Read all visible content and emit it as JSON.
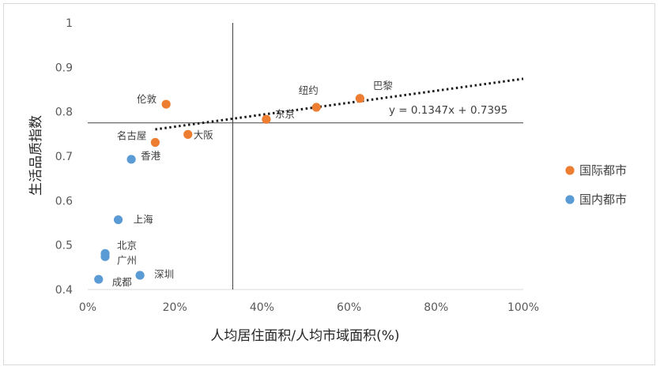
{
  "chart_data": {
    "type": "scatter",
    "xlabel": "人均居住面积/人均市域面积(%)",
    "ylabel": "生活品质指数",
    "xlim": [
      0,
      1
    ],
    "ylim": [
      0.4,
      1
    ],
    "x_ticks": [
      "0%",
      "20%",
      "40%",
      "60%",
      "80%",
      "100%"
    ],
    "y_ticks": [
      "0.4",
      "0.5",
      "0.6",
      "0.7",
      "0.8",
      "0.9",
      "1"
    ],
    "grid": false,
    "legend_position": "right",
    "reference_lines": {
      "x": 0.333,
      "y": 0.775
    },
    "trendline": {
      "equation": "y = 0.1347x + 0.7395",
      "slope": 0.1347,
      "intercept": 0.7395,
      "x_range": [
        0.155,
        1.0
      ],
      "style": "dotted"
    },
    "series": [
      {
        "name": "国际都市",
        "color": "#ed7d31",
        "points": [
          {
            "label": "伦敦",
            "x": 0.18,
            "y": 0.817
          },
          {
            "label": "名古屋",
            "x": 0.155,
            "y": 0.731
          },
          {
            "label": "大阪",
            "x": 0.23,
            "y": 0.749
          },
          {
            "label": "东京",
            "x": 0.41,
            "y": 0.783
          },
          {
            "label": "纽约",
            "x": 0.525,
            "y": 0.81
          },
          {
            "label": "巴黎",
            "x": 0.625,
            "y": 0.83
          }
        ]
      },
      {
        "name": "国内都市",
        "color": "#5b9bd5",
        "points": [
          {
            "label": "香港",
            "x": 0.1,
            "y": 0.693
          },
          {
            "label": "上海",
            "x": 0.07,
            "y": 0.557
          },
          {
            "label": "北京",
            "x": 0.04,
            "y": 0.481
          },
          {
            "label": "广州",
            "x": 0.04,
            "y": 0.474
          },
          {
            "label": "成都",
            "x": 0.025,
            "y": 0.423
          },
          {
            "label": "深圳",
            "x": 0.12,
            "y": 0.432
          }
        ]
      }
    ]
  }
}
